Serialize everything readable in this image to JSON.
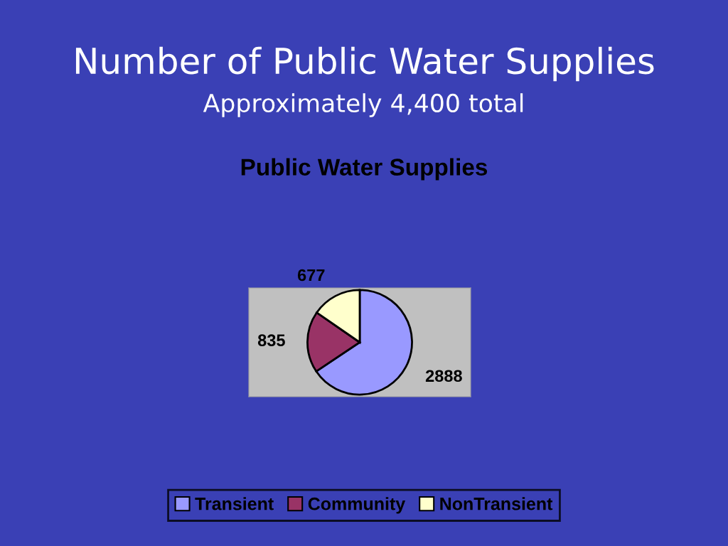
{
  "chart_data": {
    "type": "pie",
    "title": "Number of Public Water Supplies",
    "subtitle": "Approximately 4,400 total",
    "annotations": [
      "Public Water Supplies"
    ],
    "categories": [
      "Transient",
      "Community",
      "NonTransient"
    ],
    "values": [
      2888,
      835,
      677
    ],
    "colors": [
      "#9999ff",
      "#993366",
      "#ffffcc"
    ],
    "data_labels": true,
    "legend": "bottom"
  }
}
